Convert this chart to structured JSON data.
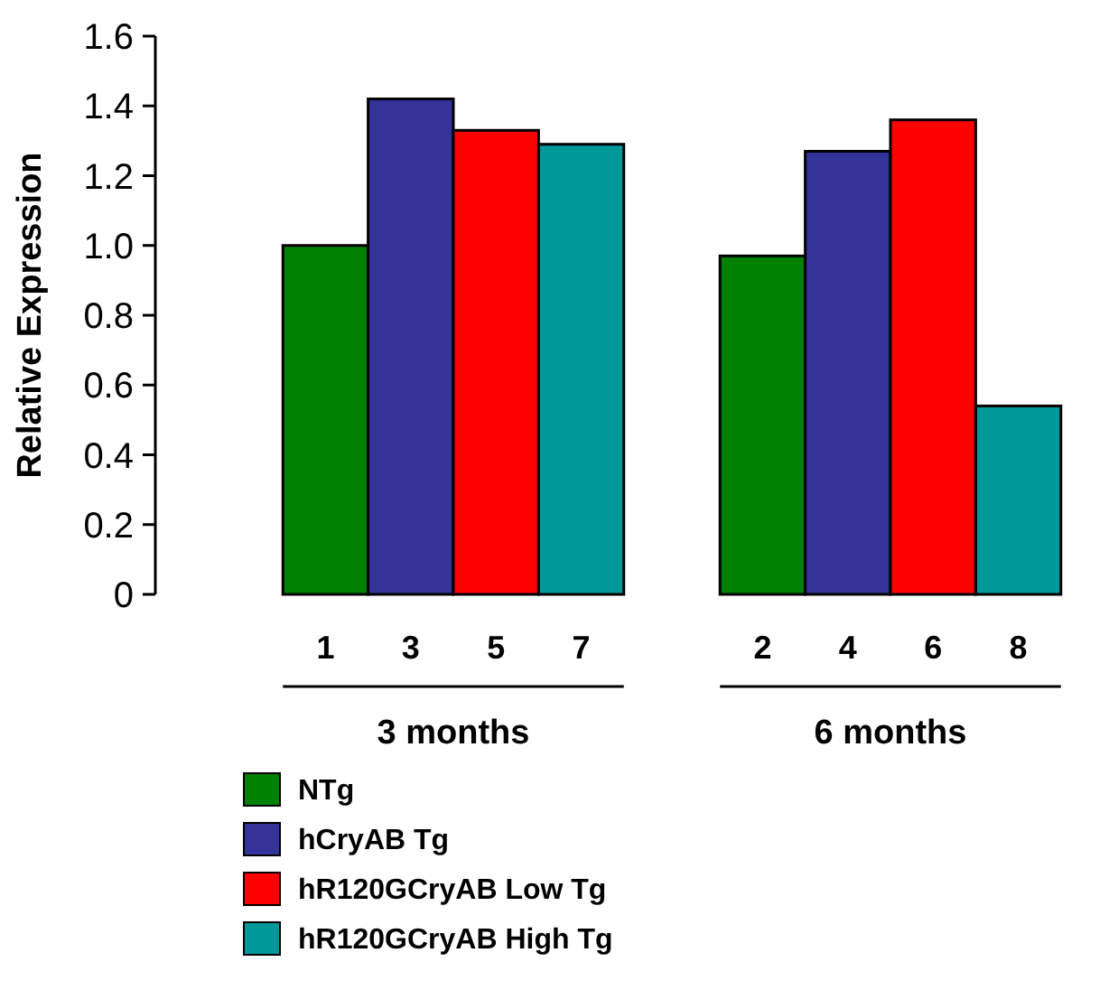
{
  "chart_data": {
    "type": "bar",
    "ylabel": "Relative Expression",
    "categories": [
      "3 months",
      "6 months"
    ],
    "series": [
      {
        "name": "NTg",
        "color": "#008000",
        "values": [
          1.0,
          0.97
        ]
      },
      {
        "name": "hCryAB Tg",
        "color": "#333399",
        "values": [
          1.42,
          1.27
        ]
      },
      {
        "name": "hR120GCryAB Low Tg",
        "color": "#ff0000",
        "values": [
          1.33,
          1.36
        ]
      },
      {
        "name": "hR120GCryAB High Tg",
        "color": "#009999",
        "values": [
          1.29,
          0.54
        ]
      }
    ],
    "ylim": [
      0,
      1.6
    ],
    "yticks": [
      {
        "value": 0,
        "label": "0"
      },
      {
        "value": 0.2,
        "label": "0.2"
      },
      {
        "value": 0.4,
        "label": "0.4"
      },
      {
        "value": 0.6,
        "label": "0.6"
      },
      {
        "value": 0.8,
        "label": "0.8"
      },
      {
        "value": 1,
        "label": "1.0"
      },
      {
        "value": 1.2,
        "label": "1.2"
      },
      {
        "value": 1.4,
        "label": "1.4"
      },
      {
        "value": 1.6,
        "label": "1.6"
      }
    ],
    "annotations": [
      "1",
      "3",
      "5",
      "7",
      "2",
      "4",
      "6",
      "8"
    ],
    "legend": "bottom left",
    "grid": false
  }
}
